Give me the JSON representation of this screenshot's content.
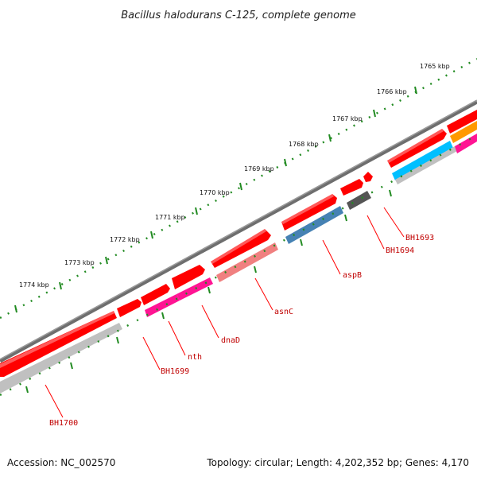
{
  "title": "Bacillus halodurans C-125, complete genome",
  "footer": {
    "accession": "Accession: NC_002570",
    "summary": "Topology: circular; Length: 4,202,352 bp; Genes: 4,170"
  },
  "ticks": [
    {
      "label": "1765 kbp"
    },
    {
      "label": "1766 kbp"
    },
    {
      "label": "1767 kbp"
    },
    {
      "label": "1768 kbp"
    },
    {
      "label": "1769 kbp"
    },
    {
      "label": "1770 kbp"
    },
    {
      "label": "1771 kbp"
    },
    {
      "label": "1772 kbp"
    },
    {
      "label": "1773 kbp"
    },
    {
      "label": "1774 kbp"
    }
  ],
  "gene_labels": [
    {
      "label": "BH1693"
    },
    {
      "label": "BH1694"
    },
    {
      "label": "aspB"
    },
    {
      "label": "asnC"
    },
    {
      "label": "dnaD"
    },
    {
      "label": "nth"
    },
    {
      "label": "BH1699"
    },
    {
      "label": "BH1700"
    }
  ],
  "colors": {
    "backbone": "#7a7a7a",
    "cds": "#ff0000",
    "gene_light_gray": "#c0c0c0",
    "gene_magenta": "#ff1493",
    "gene_salmon": "#f08080",
    "gene_steelblue": "#4682b4",
    "gene_darkgray": "#555555",
    "gene_skyblue": "#00bfff",
    "gene_orange": "#ff9900",
    "tick": "#228b22",
    "label": "#c00000"
  }
}
